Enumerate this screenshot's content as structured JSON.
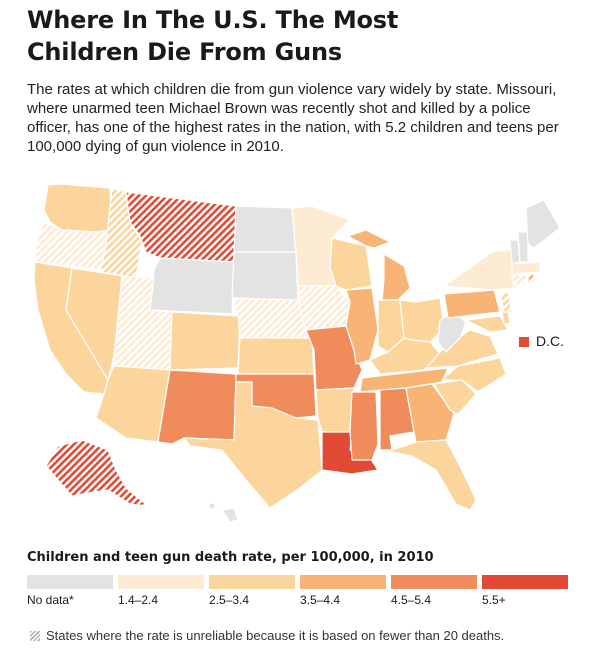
{
  "header": {
    "title_line1": "Where In The U.S. The Most",
    "title_line2": "Children Die From Guns",
    "dek": "The rates at which children die from gun violence vary widely by state. Missouri, where unarmed teen Michael Brown was recently shot and killed by a police officer, has one of the highest rates in the nation, with 5.2 children and teens per 100,000 dying of gun violence in 2010."
  },
  "legend": {
    "title": "Children and teen gun death rate, per 100,000, in 2010",
    "items": [
      {
        "label": "No data*",
        "color": "#e3e3e3"
      },
      {
        "label": "1.4–2.4",
        "color": "#fdebd3"
      },
      {
        "label": "2.5–3.4",
        "color": "#fbd59c"
      },
      {
        "label": "3.5–4.4",
        "color": "#f8b474"
      },
      {
        "label": "4.5–5.4",
        "color": "#f08b5c"
      },
      {
        "label": "5.5+",
        "color": "#e34a35"
      }
    ],
    "footnote": "States where the rate is unreliable because it is based on fewer than 20 deaths."
  },
  "map": {
    "dc_label": "D.C."
  }
}
